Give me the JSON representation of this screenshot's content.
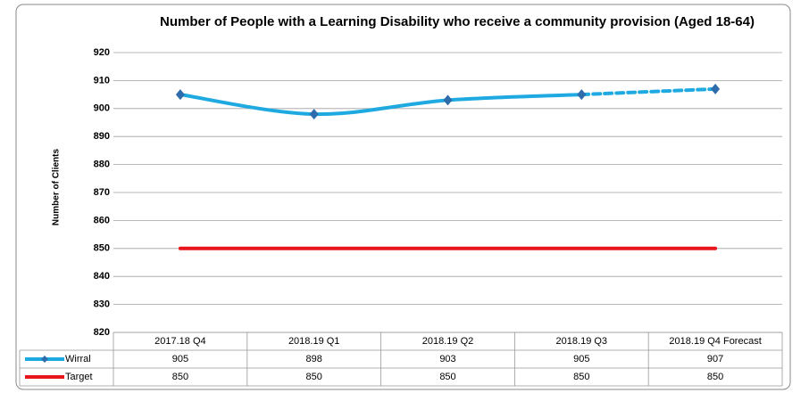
{
  "chart_data": {
    "type": "line",
    "title": "Number of People with a Learning Disability who receive a community provision (Aged 18-64)",
    "y_label": "Number of Clients",
    "categories": [
      "2017.18 Q4",
      "2018.19 Q1",
      "2018.19 Q2",
      "2018.19 Q3",
      "2018.19 Q4 Forecast"
    ],
    "series": [
      {
        "name": "Wirral",
        "color": "#1fa9e1",
        "marker_color": "#2e6cab",
        "values": [
          905,
          898,
          903,
          905,
          907
        ],
        "dashed_last_segment": true
      },
      {
        "name": "Target",
        "color": "#e8151c",
        "values": [
          850,
          850,
          850,
          850,
          850
        ]
      }
    ],
    "ylim": [
      820,
      920
    ],
    "yticks": [
      820,
      830,
      840,
      850,
      860,
      870,
      880,
      890,
      900,
      910,
      920
    ],
    "grid": true,
    "data_table": true
  }
}
